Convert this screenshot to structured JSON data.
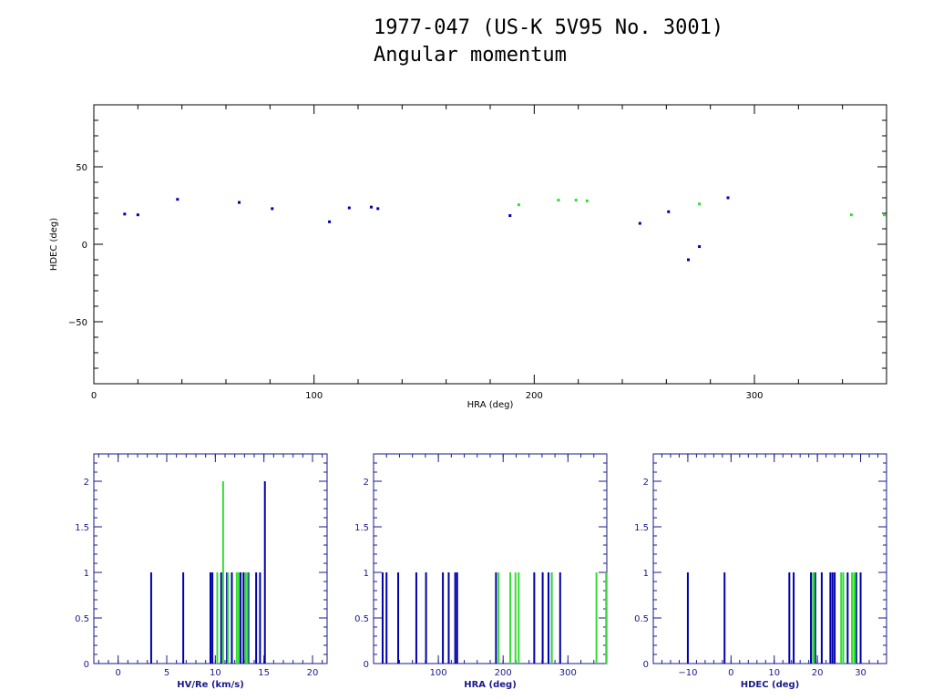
{
  "title_line1": "1977-047 (US-K 5V95 No. 3001)",
  "title_line2": "Angular momentum",
  "colors": {
    "blue": "#0000aa",
    "green": "#33dd33",
    "frame_top": "#000000",
    "frame_hist": "#1a1a8a"
  },
  "chart_data": [
    {
      "type": "scatter",
      "xlabel": "HRA (deg)",
      "ylabel": "HDEC (deg)",
      "xlim": [
        0,
        360
      ],
      "ylim": [
        -90,
        90
      ],
      "xticks": [
        0,
        100,
        200,
        300
      ],
      "yticks": [
        -50,
        0,
        50
      ],
      "series": [
        {
          "color": "blue",
          "points": [
            [
              14,
              19.5
            ],
            [
              20,
              19
            ],
            [
              38,
              29
            ],
            [
              66,
              27
            ],
            [
              81,
              23
            ],
            [
              107,
              14.5
            ],
            [
              116,
              23.5
            ],
            [
              126,
              24
            ],
            [
              129,
              23
            ],
            [
              189,
              18.5
            ],
            [
              248,
              13.5
            ],
            [
              261,
              21
            ],
            [
              270,
              -10
            ],
            [
              275,
              -1.5
            ],
            [
              288,
              30
            ]
          ]
        },
        {
          "color": "green",
          "points": [
            [
              193,
              25.5
            ],
            [
              211,
              28.5
            ],
            [
              219,
              28.5
            ],
            [
              224,
              28
            ],
            [
              275,
              26
            ],
            [
              344,
              19
            ],
            [
              359,
              19
            ]
          ]
        }
      ]
    },
    {
      "type": "bar",
      "xlabel": "HV/Re (km/s)",
      "xlim": [
        -2.5,
        21.5
      ],
      "ylim": [
        0,
        2.3
      ],
      "xticks": [
        0,
        5,
        10,
        15,
        20
      ],
      "yticks": [
        0,
        0.5,
        1,
        1.5,
        2
      ],
      "ytick_labels": [
        "0",
        "0.5",
        "1",
        "1.5",
        "2"
      ],
      "series": [
        {
          "color": "blue",
          "x": [
            3.4,
            6.7,
            9.5,
            9.7,
            10.6,
            11.2,
            11.7,
            12.6,
            12.9,
            13.4,
            14.2,
            14.6,
            15.1
          ],
          "values": [
            1,
            1,
            1,
            1,
            1,
            1,
            1,
            1,
            1,
            1,
            1,
            1,
            2
          ]
        },
        {
          "color": "green",
          "x": [
            10.2,
            10.8,
            11.3,
            12.2,
            12.4,
            13.1,
            13.3
          ],
          "values": [
            1,
            2,
            1,
            1,
            1,
            1,
            1
          ]
        }
      ]
    },
    {
      "type": "bar",
      "xlabel": "HRA (deg)",
      "xlim": [
        0,
        360
      ],
      "ylim": [
        0,
        2.3
      ],
      "xticks": [
        100,
        200,
        300
      ],
      "yticks": [
        0,
        0.5,
        1,
        1.5,
        2
      ],
      "ytick_labels": [
        "0",
        "0.5",
        "1",
        "1.5",
        "2"
      ],
      "series": [
        {
          "color": "blue",
          "x": [
            14,
            20,
            38,
            66,
            81,
            107,
            116,
            126,
            129,
            189,
            248,
            261,
            270,
            275,
            288
          ],
          "values": [
            1,
            1,
            1,
            1,
            1,
            1,
            1,
            1,
            1,
            1,
            1,
            1,
            1,
            1,
            1
          ]
        },
        {
          "color": "green",
          "x": [
            193,
            211,
            219,
            224,
            275,
            344,
            359
          ],
          "values": [
            1,
            1,
            1,
            1,
            1,
            1,
            1
          ]
        }
      ]
    },
    {
      "type": "bar",
      "xlabel": "HDEC (deg)",
      "xlim": [
        -18,
        36
      ],
      "ylim": [
        0,
        2.3
      ],
      "xticks": [
        -10,
        0,
        10,
        20,
        30
      ],
      "yticks": [
        0,
        0.5,
        1,
        1.5,
        2
      ],
      "ytick_labels": [
        "0",
        "0.5",
        "1",
        "1.5",
        "2"
      ],
      "series": [
        {
          "color": "blue",
          "x": [
            -10,
            -1.5,
            13.5,
            14.5,
            18.5,
            19,
            19.5,
            21,
            23,
            23.5,
            24,
            27,
            29,
            30
          ],
          "values": [
            1,
            1,
            1,
            1,
            1,
            1,
            1,
            1,
            1,
            1,
            1,
            1,
            1,
            1
          ]
        },
        {
          "color": "green",
          "x": [
            19,
            19.2,
            25.5,
            26,
            28,
            28.5,
            28.7
          ],
          "values": [
            1,
            1,
            1,
            1,
            1,
            1,
            1
          ]
        }
      ]
    }
  ]
}
